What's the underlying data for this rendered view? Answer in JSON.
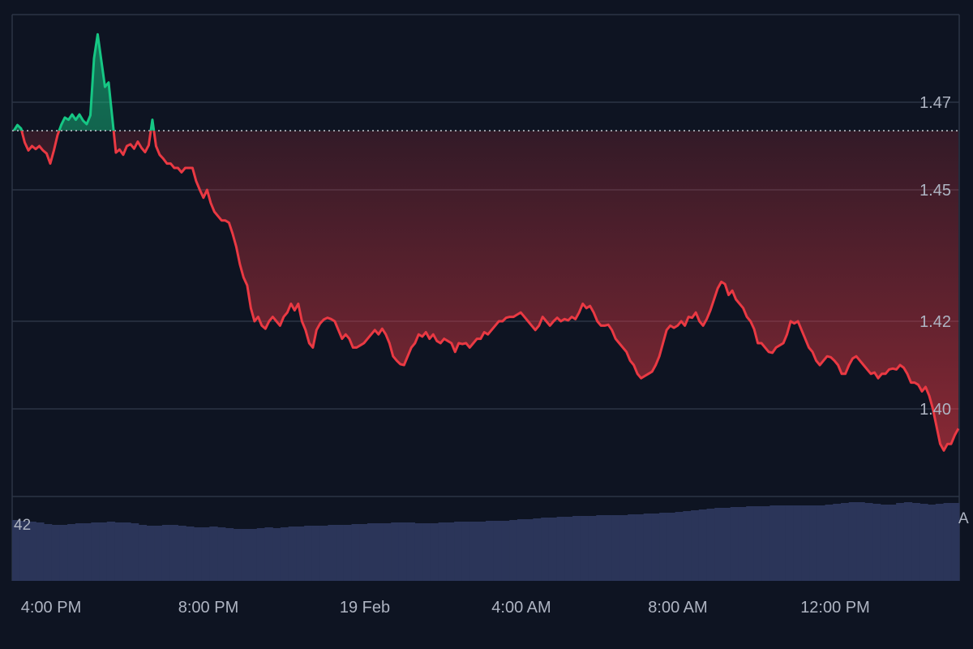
{
  "chart_data": {
    "type": "line",
    "x_tick_labels": [
      "4:00 PM",
      "8:00 PM",
      "19 Feb",
      "4:00 AM",
      "8:00 AM",
      "12:00 PM"
    ],
    "y_tick_labels": [
      "1.47",
      "1.45",
      "1.42",
      "1.40"
    ],
    "y_ticks": [
      1.47,
      1.45,
      1.42,
      1.4
    ],
    "ylim": [
      1.38,
      1.49
    ],
    "reference_value": 1.4635,
    "volume_label": "42",
    "volume_edge_label": "A",
    "colors": {
      "background": "#0e1422",
      "grid": "#2c3445",
      "above": "#16c784",
      "below": "#ea3943",
      "volume": "#2b3559",
      "text": "#aeb4c2",
      "reference": "#c8ccd4"
    },
    "price_series": [
      1.4635,
      1.4648,
      1.464,
      1.4608,
      1.459,
      1.46,
      1.4593,
      1.46,
      1.459,
      1.4583,
      1.456,
      1.459,
      1.4625,
      1.4648,
      1.4665,
      1.466,
      1.4672,
      1.466,
      1.4672,
      1.4658,
      1.465,
      1.467,
      1.48,
      1.4855,
      1.4795,
      1.4735,
      1.4745,
      1.4665,
      1.4585,
      1.4592,
      1.458,
      1.46,
      1.4604,
      1.4594,
      1.461,
      1.4596,
      1.4586,
      1.4602,
      1.466,
      1.46,
      1.458,
      1.4571,
      1.456,
      1.456,
      1.455,
      1.455,
      1.454,
      1.455,
      1.455,
      1.455,
      1.452,
      1.45,
      1.4482,
      1.45,
      1.447,
      1.445,
      1.444,
      1.443,
      1.443,
      1.4425,
      1.44,
      1.437,
      1.433,
      1.43,
      1.4282,
      1.423,
      1.42,
      1.421,
      1.419,
      1.4183,
      1.42,
      1.421,
      1.42,
      1.419,
      1.421,
      1.422,
      1.424,
      1.4225,
      1.424,
      1.42,
      1.418,
      1.415,
      1.414,
      1.418,
      1.4195,
      1.4204,
      1.4208,
      1.4205,
      1.42,
      1.418,
      1.416,
      1.417,
      1.416,
      1.414,
      1.414,
      1.4145,
      1.415,
      1.416,
      1.417,
      1.418,
      1.417,
      1.4183,
      1.417,
      1.415,
      1.412,
      1.411,
      1.4102,
      1.41,
      1.412,
      1.414,
      1.415,
      1.417,
      1.4165,
      1.4175,
      1.416,
      1.417,
      1.4155,
      1.415,
      1.416,
      1.4155,
      1.415,
      1.413,
      1.415,
      1.4148,
      1.415,
      1.414,
      1.415,
      1.416,
      1.416,
      1.4175,
      1.417,
      1.418,
      1.419,
      1.42,
      1.42,
      1.4208,
      1.421,
      1.421,
      1.4215,
      1.422,
      1.421,
      1.42,
      1.419,
      1.418,
      1.419,
      1.421,
      1.42,
      1.419,
      1.42,
      1.4208,
      1.42,
      1.4205,
      1.4202,
      1.421,
      1.4205,
      1.422,
      1.424,
      1.423,
      1.4235,
      1.422,
      1.42,
      1.419,
      1.419,
      1.4192,
      1.418,
      1.416,
      1.415,
      1.414,
      1.413,
      1.411,
      1.41,
      1.408,
      1.407,
      1.4075,
      1.408,
      1.4085,
      1.41,
      1.412,
      1.415,
      1.418,
      1.419,
      1.4185,
      1.419,
      1.42,
      1.419,
      1.421,
      1.4208,
      1.422,
      1.42,
      1.419,
      1.4205,
      1.4225,
      1.425,
      1.4275,
      1.429,
      1.4285,
      1.426,
      1.427,
      1.425,
      1.424,
      1.423,
      1.421,
      1.42,
      1.4182,
      1.415,
      1.415,
      1.414,
      1.413,
      1.4128,
      1.414,
      1.4145,
      1.415,
      1.417,
      1.42,
      1.4195,
      1.42,
      1.418,
      1.416,
      1.414,
      1.413,
      1.411,
      1.41,
      1.411,
      1.412,
      1.4118,
      1.411,
      1.41,
      1.408,
      1.408,
      1.41,
      1.4115,
      1.412,
      1.411,
      1.41,
      1.409,
      1.408,
      1.4083,
      1.407,
      1.408,
      1.408,
      1.409,
      1.4092,
      1.409,
      1.41,
      1.4094,
      1.408,
      1.406,
      1.406,
      1.4055,
      1.404,
      1.405,
      1.403,
      1.4,
      1.396,
      1.392,
      1.3905,
      1.392,
      1.392,
      1.394,
      1.3955
    ],
    "volume_series": [
      0.75,
      0.74,
      0.73,
      0.72,
      0.7,
      0.69,
      0.69,
      0.7,
      0.71,
      0.71,
      0.72,
      0.72,
      0.73,
      0.72,
      0.72,
      0.71,
      0.69,
      0.68,
      0.68,
      0.69,
      0.69,
      0.68,
      0.67,
      0.66,
      0.66,
      0.67,
      0.66,
      0.65,
      0.64,
      0.64,
      0.64,
      0.65,
      0.66,
      0.65,
      0.66,
      0.67,
      0.67,
      0.68,
      0.68,
      0.68,
      0.69,
      0.69,
      0.69,
      0.7,
      0.7,
      0.71,
      0.71,
      0.71,
      0.72,
      0.72,
      0.72,
      0.71,
      0.71,
      0.71,
      0.72,
      0.72,
      0.73,
      0.73,
      0.73,
      0.73,
      0.74,
      0.74,
      0.74,
      0.75,
      0.76,
      0.76,
      0.77,
      0.78,
      0.78,
      0.79,
      0.79,
      0.8,
      0.8,
      0.8,
      0.81,
      0.81,
      0.81,
      0.81,
      0.82,
      0.82,
      0.83,
      0.83,
      0.84,
      0.84,
      0.85,
      0.86,
      0.87,
      0.88,
      0.89,
      0.9,
      0.9,
      0.91,
      0.91,
      0.92,
      0.92,
      0.92,
      0.93,
      0.93,
      0.93,
      0.93,
      0.93,
      0.93,
      0.93,
      0.94,
      0.95,
      0.96,
      0.97,
      0.97,
      0.96,
      0.95,
      0.94,
      0.94,
      0.96,
      0.97,
      0.96,
      0.95,
      0.94,
      0.95,
      0.96,
      0.96
    ]
  }
}
